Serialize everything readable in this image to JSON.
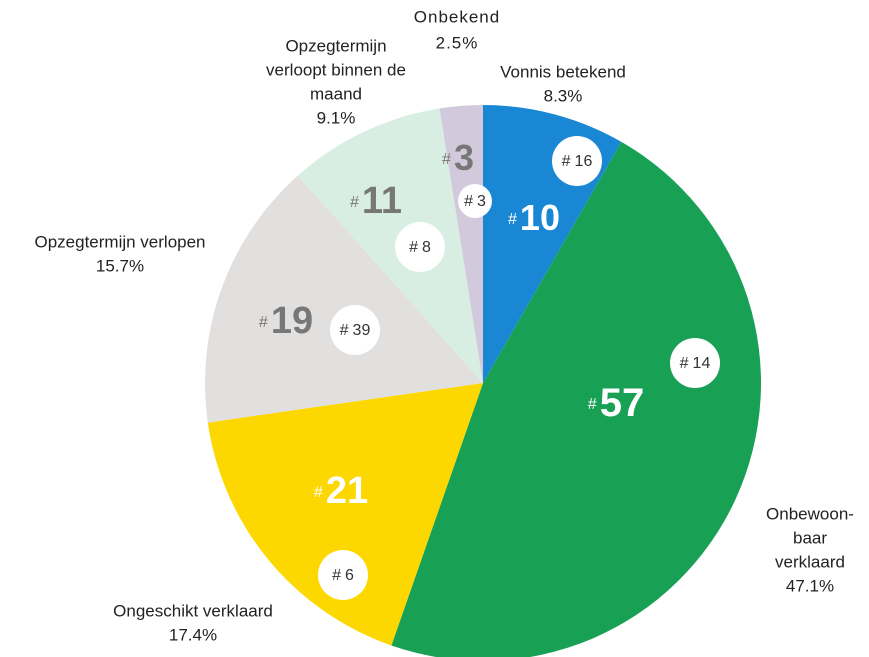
{
  "chart_data": {
    "type": "pie",
    "count_prefix": "#",
    "categories": [
      [
        "Vonnis betekend"
      ],
      [
        "Onbewoon-",
        "baar",
        "verklaard"
      ],
      [
        "Ongeschikt verklaard"
      ],
      [
        "Opzegtermijn verlopen"
      ],
      [
        "Opzegtermijn",
        "verloopt binnen de",
        "maand"
      ],
      [
        "Onbekend"
      ]
    ],
    "values": [
      8.3,
      47.1,
      17.4,
      15.7,
      9.1,
      2.5
    ],
    "value_labels": [
      "8.3%",
      "47.1%",
      "17.4%",
      "15.7%",
      "9.1%",
      "2.5%"
    ],
    "counts": [
      10,
      57,
      21,
      19,
      11,
      3
    ],
    "badges": [
      16,
      14,
      6,
      39,
      8,
      3
    ],
    "colors": [
      "#1a87d4",
      "#18a055",
      "#fcd800",
      "#e2e0de",
      "#d9eee2",
      "#d3c9dc"
    ],
    "count_colors": [
      "#ffffff",
      "#ffffff",
      "#ffffff",
      "#777777",
      "#777777",
      "#777777"
    ]
  }
}
